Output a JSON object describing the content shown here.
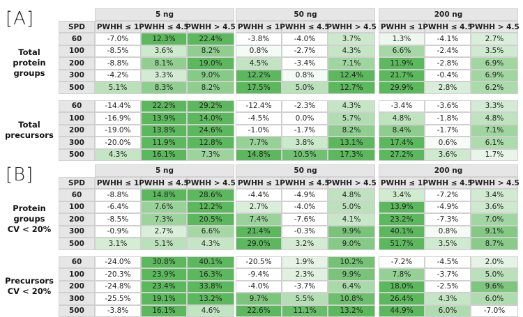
{
  "panels": [
    {
      "label": "[A]",
      "amounts": [
        "5 ng",
        "50 ng",
        "200 ng"
      ],
      "columns": [
        "PWHH ≤ 1",
        "PWHH ≤ 4.5",
        "PWHH > 4.5"
      ],
      "spd_header": "SPD",
      "groups": [
        {
          "label_lines": [
            "Total",
            "protein",
            "groups"
          ],
          "spd": [
            "60",
            "100",
            "200",
            "300",
            "500"
          ],
          "rows": [
            [
              "-7.0%",
              "12.3%",
              "22.4%",
              "-3.8%",
              "-4.0%",
              "3.7%",
              "1.3%",
              "-4.1%",
              "2.7%"
            ],
            [
              "-8.5%",
              "3.6%",
              "8.2%",
              "0.8%",
              "-2.7%",
              "4.3%",
              "6.6%",
              "-2.4%",
              "3.5%"
            ],
            [
              "-8.8%",
              "8.1%",
              "19.0%",
              "4.5%",
              "-3.4%",
              "7.1%",
              "11.9%",
              "-2.8%",
              "6.9%"
            ],
            [
              "-4.2%",
              "3.3%",
              "9.0%",
              "12.2%",
              "0.8%",
              "12.4%",
              "21.7%",
              "-0.4%",
              "6.9%"
            ],
            [
              "5.1%",
              "8.3%",
              "8.2%",
              "17.5%",
              "5.0%",
              "12.7%",
              "29.9%",
              "2.8%",
              "6.2%"
            ]
          ]
        },
        {
          "label_lines": [
            "Total",
            "precursors"
          ],
          "spd": [
            "60",
            "100",
            "200",
            "300",
            "500"
          ],
          "rows": [
            [
              "-14.4%",
              "22.2%",
              "29.2%",
              "-12.4%",
              "-2.3%",
              "4.3%",
              "-3.4%",
              "-3.6%",
              "3.3%"
            ],
            [
              "-16.9%",
              "13.9%",
              "14.0%",
              "-4.5%",
              "0.0%",
              "5.7%",
              "4.8%",
              "-1.8%",
              "4.8%"
            ],
            [
              "-19.0%",
              "13.8%",
              "24.6%",
              "-1.0%",
              "-1.7%",
              "8.2%",
              "8.4%",
              "-1.7%",
              "7.1%"
            ],
            [
              "-20.0%",
              "11.9%",
              "12.8%",
              "7.7%",
              "3.8%",
              "13.1%",
              "17.4%",
              "0.6%",
              "6.1%"
            ],
            [
              "4.3%",
              "16.1%",
              "7.3%",
              "14.8%",
              "10.5%",
              "17.3%",
              "27.2%",
              "3.6%",
              "1.7%"
            ]
          ]
        }
      ]
    },
    {
      "label": "[B]",
      "amounts": [
        "5 ng",
        "50 ng",
        "200 ng"
      ],
      "columns": [
        "PWHH ≤ 1",
        "PWHH ≤ 4.5",
        "PWHH > 4.5"
      ],
      "spd_header": "SPD",
      "groups": [
        {
          "label_lines": [
            "Protein",
            "groups",
            "CV < 20%"
          ],
          "spd": [
            "60",
            "100",
            "200",
            "300",
            "500"
          ],
          "rows": [
            [
              "-8.8%",
              "14.8%",
              "28.6%",
              "-4.4%",
              "-4.9%",
              "4.8%",
              "3.4%",
              "-7.2%",
              "3.4%"
            ],
            [
              "-6.4%",
              "7.6%",
              "12.2%",
              "2.7%",
              "-4.0%",
              "5.0%",
              "13.9%",
              "-4.9%",
              "3.6%"
            ],
            [
              "-8.5%",
              "7.3%",
              "20.5%",
              "7.4%",
              "-7.6%",
              "4.1%",
              "23.2%",
              "-7.3%",
              "7.0%"
            ],
            [
              "-0.9%",
              "2.7%",
              "6.6%",
              "21.4%",
              "-0.3%",
              "9.9%",
              "40.1%",
              "0.8%",
              "9.1%"
            ],
            [
              "3.1%",
              "5.1%",
              "4.3%",
              "29.0%",
              "3.2%",
              "9.0%",
              "51.7%",
              "3.5%",
              "8.7%"
            ]
          ]
        },
        {
          "label_lines": [
            "Precursors",
            "CV < 20%"
          ],
          "spd": [
            "60",
            "100",
            "200",
            "300",
            "500"
          ],
          "rows": [
            [
              "-24.0%",
              "30.8%",
              "40.1%",
              "-20.5%",
              "1.9%",
              "10.2%",
              "-7.2%",
              "-4.5%",
              "2.0%"
            ],
            [
              "-20.3%",
              "23.9%",
              "16.3%",
              "-9.4%",
              "2.3%",
              "9.9%",
              "7.8%",
              "-3.7%",
              "5.0%"
            ],
            [
              "-24.8%",
              "23.4%",
              "33.8%",
              "-4.0%",
              "-3.7%",
              "6.4%",
              "18.0%",
              "-2.5%",
              "9.6%"
            ],
            [
              "-25.5%",
              "19.1%",
              "13.2%",
              "9.7%",
              "5.5%",
              "10.8%",
              "26.4%",
              "4.3%",
              "6.0%"
            ],
            [
              "-3.8%",
              "16.1%",
              "4.6%",
              "22.6%",
              "11.1%",
              "13.2%",
              "44.9%",
              "6.0%",
              "-7.0%"
            ]
          ]
        }
      ]
    }
  ],
  "colors": {
    "header_bg": "#e6e6e6",
    "border": "#d0d0d0",
    "green_dark": "#5cb85c",
    "green_light": "#ffffff"
  }
}
